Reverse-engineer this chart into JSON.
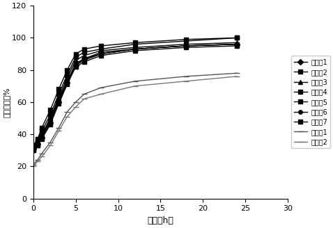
{
  "title": "",
  "xlabel": "时间（h）",
  "ylabel": "累计释放度%",
  "xlim": [
    0,
    30
  ],
  "ylim": [
    0,
    120
  ],
  "xticks": [
    0,
    5,
    10,
    15,
    20,
    25,
    30
  ],
  "yticks": [
    0,
    20,
    40,
    60,
    80,
    100,
    120
  ],
  "series": [
    {
      "label": "实施例1",
      "marker": "D",
      "markersize": 4,
      "color": "#000000",
      "linestyle": "-",
      "linewidth": 1.0,
      "x": [
        0,
        0.5,
        1,
        2,
        3,
        4,
        5,
        6,
        8,
        12,
        18,
        24
      ],
      "y": [
        31,
        34,
        38,
        47,
        60,
        72,
        83,
        87,
        91,
        93,
        95,
        96
      ]
    },
    {
      "label": "实施例2",
      "marker": "s",
      "markersize": 5,
      "color": "#000000",
      "linestyle": "-",
      "linewidth": 1.0,
      "x": [
        0,
        0.5,
        1,
        2,
        3,
        4,
        5,
        6,
        8,
        12,
        18,
        24
      ],
      "y": [
        32,
        36,
        42,
        52,
        65,
        77,
        88,
        91,
        93,
        96,
        98,
        100
      ]
    },
    {
      "label": "实施例3",
      "marker": "^",
      "markersize": 5,
      "color": "#000000",
      "linestyle": "-",
      "linewidth": 1.0,
      "x": [
        0,
        0.5,
        1,
        2,
        3,
        4,
        5,
        6,
        8,
        12,
        18,
        24
      ],
      "y": [
        32,
        35,
        40,
        50,
        63,
        75,
        86,
        89,
        92,
        94,
        96,
        97
      ]
    },
    {
      "label": "实施例4",
      "marker": "s",
      "markersize": 5,
      "color": "#000000",
      "linestyle": "-",
      "linewidth": 1.0,
      "x": [
        0,
        0.5,
        1,
        2,
        3,
        4,
        5,
        6,
        8,
        12,
        18,
        24
      ],
      "y": [
        30,
        33,
        38,
        48,
        61,
        73,
        84,
        87,
        90,
        93,
        95,
        96
      ]
    },
    {
      "label": "实施例5",
      "marker": "s",
      "markersize": 5,
      "color": "#000000",
      "linestyle": "-",
      "linewidth": 1.0,
      "x": [
        0,
        0.5,
        1,
        2,
        3,
        4,
        5,
        6,
        8,
        12,
        18,
        24
      ],
      "y": [
        30,
        33,
        37,
        46,
        59,
        71,
        82,
        85,
        89,
        92,
        94,
        95
      ]
    },
    {
      "label": "实施例6",
      "marker": "o",
      "markersize": 4,
      "color": "#000000",
      "linestyle": "-",
      "linewidth": 1.0,
      "x": [
        0,
        0.5,
        1,
        2,
        3,
        4,
        5,
        6,
        8,
        12,
        18,
        24
      ],
      "y": [
        31,
        34,
        39,
        49,
        62,
        73,
        83,
        86,
        90,
        93,
        95,
        96
      ]
    },
    {
      "label": "实施例7",
      "marker": "s",
      "markersize": 5,
      "color": "#000000",
      "linestyle": "-",
      "linewidth": 1.0,
      "x": [
        0,
        0.5,
        1,
        2,
        3,
        4,
        5,
        6,
        8,
        12,
        18,
        24
      ],
      "y": [
        33,
        37,
        44,
        55,
        68,
        80,
        90,
        93,
        95,
        97,
        99,
        100
      ]
    },
    {
      "label": "比较例1",
      "marker": "_",
      "markersize": 6,
      "color": "#555555",
      "linestyle": "-",
      "linewidth": 1.0,
      "x": [
        0,
        0.5,
        1,
        2,
        3,
        4,
        5,
        6,
        8,
        12,
        18,
        24
      ],
      "y": [
        21,
        24,
        28,
        35,
        44,
        54,
        60,
        65,
        69,
        73,
        76,
        78
      ]
    },
    {
      "label": "比较例2",
      "marker": "_",
      "markersize": 6,
      "color": "#777777",
      "linestyle": "-",
      "linewidth": 1.0,
      "x": [
        0,
        0.5,
        1,
        2,
        3,
        4,
        5,
        6,
        8,
        12,
        18,
        24
      ],
      "y": [
        20,
        23,
        26,
        33,
        42,
        51,
        57,
        62,
        65,
        70,
        73,
        76
      ]
    }
  ]
}
